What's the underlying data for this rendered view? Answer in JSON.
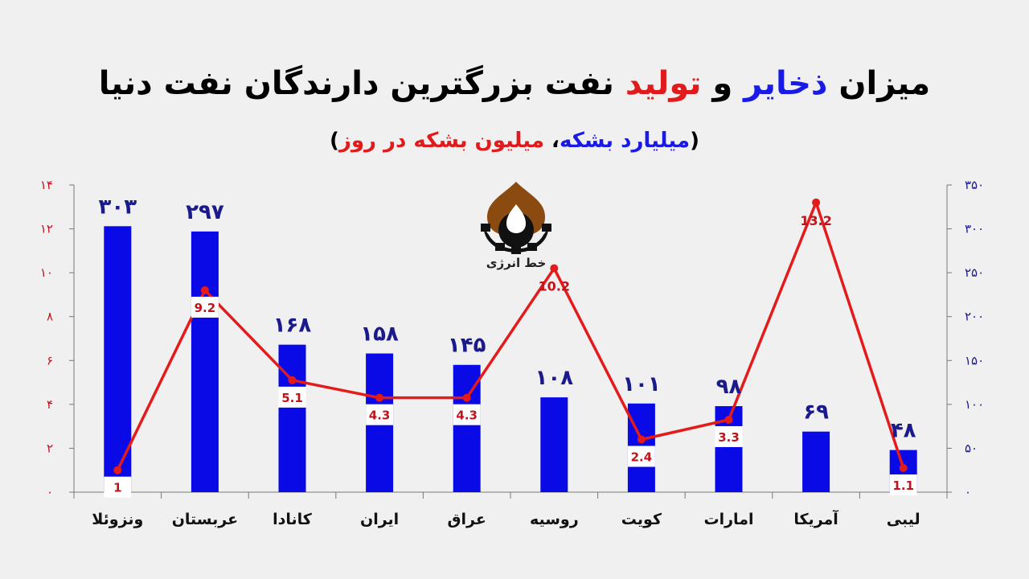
{
  "header": {
    "title_parts": [
      {
        "text": "میزان ",
        "color": "#000000"
      },
      {
        "text": "ذخایر",
        "color": "#1a1ae6"
      },
      {
        "text": " و ",
        "color": "#000000"
      },
      {
        "text": "تولید",
        "color": "#e01b1b"
      },
      {
        "text": " نفت بزرگترین دارندگان نفت دنیا",
        "color": "#000000"
      }
    ],
    "subtitle_parts": [
      {
        "text": "(",
        "color": "#000000"
      },
      {
        "text": "میلیارد بشکه",
        "color": "#1a1ae6"
      },
      {
        "text": "، ",
        "color": "#000000"
      },
      {
        "text": "میلیون بشکه در روز",
        "color": "#e01b1b"
      },
      {
        "text": ")",
        "color": "#000000"
      }
    ]
  },
  "logo": {
    "text": "خط انرژی",
    "icon": "flame-gear-icon",
    "colors": {
      "drop": "#8b4a10",
      "gear": "#111111",
      "flame": "#ffffff"
    }
  },
  "chart_data": {
    "type": "bar",
    "categories": [
      "ونزوئلا",
      "عربستان",
      "کانادا",
      "ایران",
      "عراق",
      "روسیه",
      "کویت",
      "امارات",
      "آمریکا",
      "لیبی"
    ],
    "series": [
      {
        "type": "bar",
        "axis": "right",
        "color": "#0a0ae6",
        "values": [
          303,
          297,
          168,
          158,
          145,
          108,
          101,
          98,
          69,
          48
        ],
        "labels": [
          "۳۰۳",
          "۲۹۷",
          "۱۶۸",
          "۱۵۸",
          "۱۴۵",
          "۱۰۸",
          "۱۰۱",
          "۹۸",
          "۶۹",
          "۴۸"
        ]
      },
      {
        "type": "line",
        "axis": "left",
        "color": "#e31b1b",
        "values": [
          1,
          9.2,
          5.1,
          4.3,
          4.3,
          10.2,
          2.4,
          3.3,
          13.2,
          1.1
        ],
        "labels": [
          "1",
          "9.2",
          "5.1",
          "4.3",
          "4.3",
          "10.2",
          "2.4",
          "3.3",
          "13.2",
          "1.1"
        ],
        "label_style": [
          "boxed",
          "boxed",
          "boxed",
          "boxed",
          "boxed",
          "plain",
          "boxed",
          "boxed",
          "plain",
          "boxed"
        ]
      }
    ],
    "left_axis": {
      "ylim": [
        0,
        14
      ],
      "ticks": [
        0,
        2,
        4,
        6,
        8,
        10,
        12,
        14
      ],
      "tick_labels": [
        "۰",
        "۲",
        "۴",
        "۶",
        "۸",
        "۱۰",
        "۱۲",
        "۱۴"
      ],
      "color": "#c0141c"
    },
    "right_axis": {
      "ylim": [
        0,
        350
      ],
      "ticks": [
        0,
        50,
        100,
        150,
        200,
        250,
        300,
        350
      ],
      "tick_labels": [
        "۰",
        "۵۰",
        "۱۰۰",
        "۱۵۰",
        "۲۰۰",
        "۲۵۰",
        "۳۰۰",
        "۳۵۰"
      ],
      "color": "#1a1a8c"
    },
    "grid": false,
    "legend": "none"
  }
}
